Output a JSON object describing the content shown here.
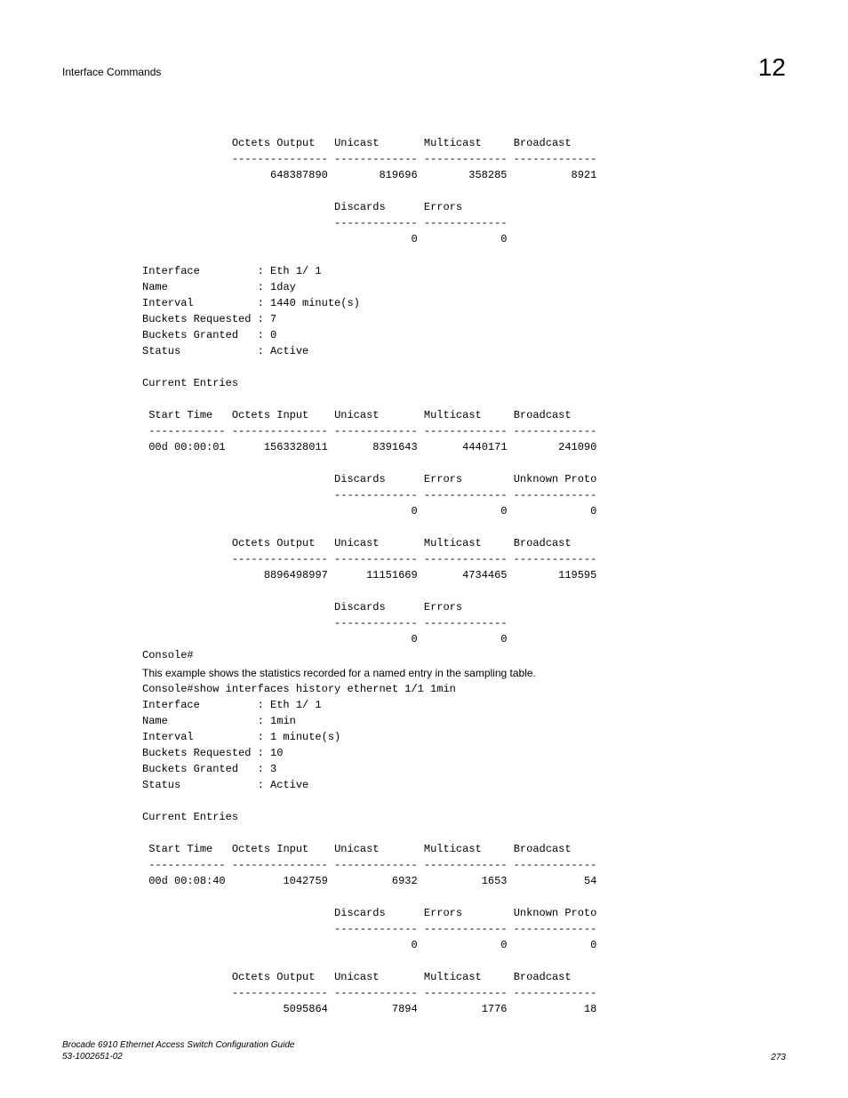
{
  "header": {
    "title": "Interface Commands",
    "chapter": "12"
  },
  "block1": {
    "output_headers": [
      "Octets Output",
      "Unicast",
      "Multicast",
      "Broadcast"
    ],
    "output_values": [
      "648387890",
      "819696",
      "358285",
      "8921"
    ],
    "discerr_headers": [
      "Discards",
      "Errors"
    ],
    "discerr_values": [
      "0",
      "0"
    ],
    "interface_label": "Interface",
    "interface_value": ": Eth 1/ 1",
    "name_label": "Name",
    "name_value": ": 1day",
    "interval_label": "Interval",
    "interval_value": ": 1440 minute(s)",
    "buckets_req_label": "Buckets Requested",
    "buckets_req_value": ": 7",
    "buckets_grant_label": "Buckets Granted",
    "buckets_grant_value": ": 0",
    "status_label": "Status",
    "status_value": ": Active",
    "current_entries": "Current Entries",
    "in_headers": [
      "Start Time",
      "Octets Input",
      "Unicast",
      "Multicast",
      "Broadcast"
    ],
    "in_values": [
      "00d 00:00:01",
      "1563328011",
      "8391643",
      "4440171",
      "241090"
    ],
    "deu_headers": [
      "Discards",
      "Errors",
      "Unknown Proto"
    ],
    "deu_values": [
      "0",
      "0",
      "0"
    ],
    "out2_headers": [
      "Octets Output",
      "Unicast",
      "Multicast",
      "Broadcast"
    ],
    "out2_values": [
      "8896498997",
      "11151669",
      "4734465",
      "119595"
    ],
    "de2_headers": [
      "Discards",
      "Errors"
    ],
    "de2_values": [
      "0",
      "0"
    ],
    "prompt": "Console#"
  },
  "narrative": "This example shows the statistics recorded for a named entry in the sampling table.",
  "block2": {
    "cmd": "Console#show interfaces history ethernet 1/1 1min",
    "interface_label": "Interface",
    "interface_value": ": Eth 1/ 1",
    "name_label": "Name",
    "name_value": ": 1min",
    "interval_label": "Interval",
    "interval_value": ": 1 minute(s)",
    "buckets_req_label": "Buckets Requested",
    "buckets_req_value": ": 10",
    "buckets_grant_label": "Buckets Granted",
    "buckets_grant_value": ": 3",
    "status_label": "Status",
    "status_value": ": Active",
    "current_entries": "Current Entries",
    "in_headers": [
      "Start Time",
      "Octets Input",
      "Unicast",
      "Multicast",
      "Broadcast"
    ],
    "in_values": [
      "00d 00:08:40",
      "1042759",
      "6932",
      "1653",
      "54"
    ],
    "deu_headers": [
      "Discards",
      "Errors",
      "Unknown Proto"
    ],
    "deu_values": [
      "0",
      "0",
      "0"
    ],
    "out_headers": [
      "Octets Output",
      "Unicast",
      "Multicast",
      "Broadcast"
    ],
    "out_values": [
      "5095864",
      "7894",
      "1776",
      "18"
    ]
  },
  "footer": {
    "line1": "Brocade 6910 Ethernet Access Switch Configuration Guide",
    "line2": "53-1002651-02",
    "page": "273"
  }
}
